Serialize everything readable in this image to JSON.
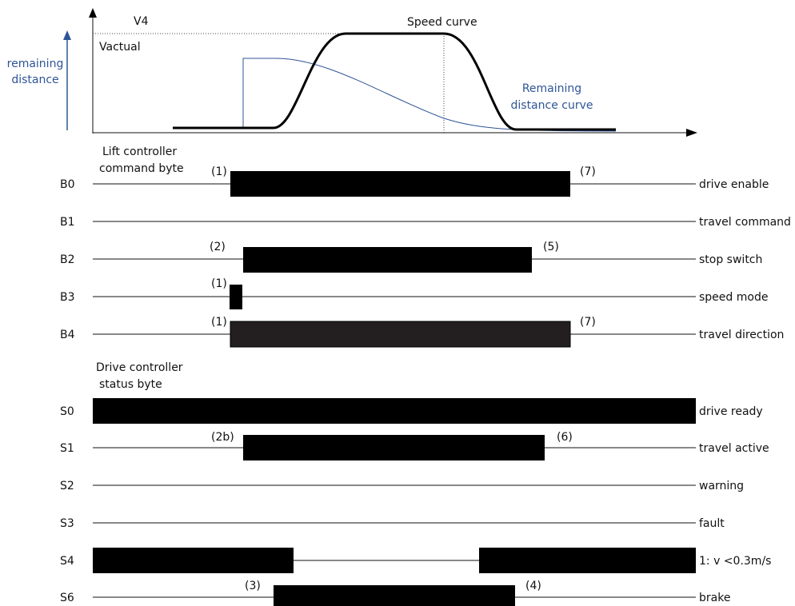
{
  "colors": {
    "ink": "#000000",
    "accent": "#2f5597",
    "dark_fill": "#231f20"
  },
  "chart": {
    "v4_label": "V4",
    "vactual_label": "Vactual",
    "speed_curve_label": "Speed curve",
    "remaining_axis_label": [
      "remaining",
      "distance"
    ],
    "remaining_curve_label": [
      "Remaining",
      "distance curve"
    ]
  },
  "sections": {
    "command_title": [
      "Lift controller",
      "command byte"
    ],
    "status_title": [
      "Drive controller",
      "status byte"
    ]
  },
  "signals": [
    {
      "id": "B0",
      "label": "drive enable",
      "ann_left": "(1)",
      "ann_right": "(7)"
    },
    {
      "id": "B1",
      "label": "travel command",
      "ann_left": "",
      "ann_right": ""
    },
    {
      "id": "B2",
      "label": "stop switch",
      "ann_left": "(2)",
      "ann_right": "(5)"
    },
    {
      "id": "B3",
      "label": "speed mode",
      "ann_left": "(1)",
      "ann_right": ""
    },
    {
      "id": "B4",
      "label": "travel direction",
      "ann_left": "(1)",
      "ann_right": "(7)"
    },
    {
      "id": "S0",
      "label": "drive ready",
      "ann_left": "",
      "ann_right": ""
    },
    {
      "id": "S1",
      "label": "travel active",
      "ann_left": "(2b)",
      "ann_right": "(6)"
    },
    {
      "id": "S2",
      "label": "warning",
      "ann_left": "",
      "ann_right": ""
    },
    {
      "id": "S3",
      "label": "fault",
      "ann_left": "",
      "ann_right": ""
    },
    {
      "id": "S4",
      "label": "1: v <0.3m/s",
      "ann_left": "",
      "ann_right": ""
    },
    {
      "id": "S6",
      "label": "brake",
      "ann_left": "(3)",
      "ann_right": "(4)"
    }
  ]
}
